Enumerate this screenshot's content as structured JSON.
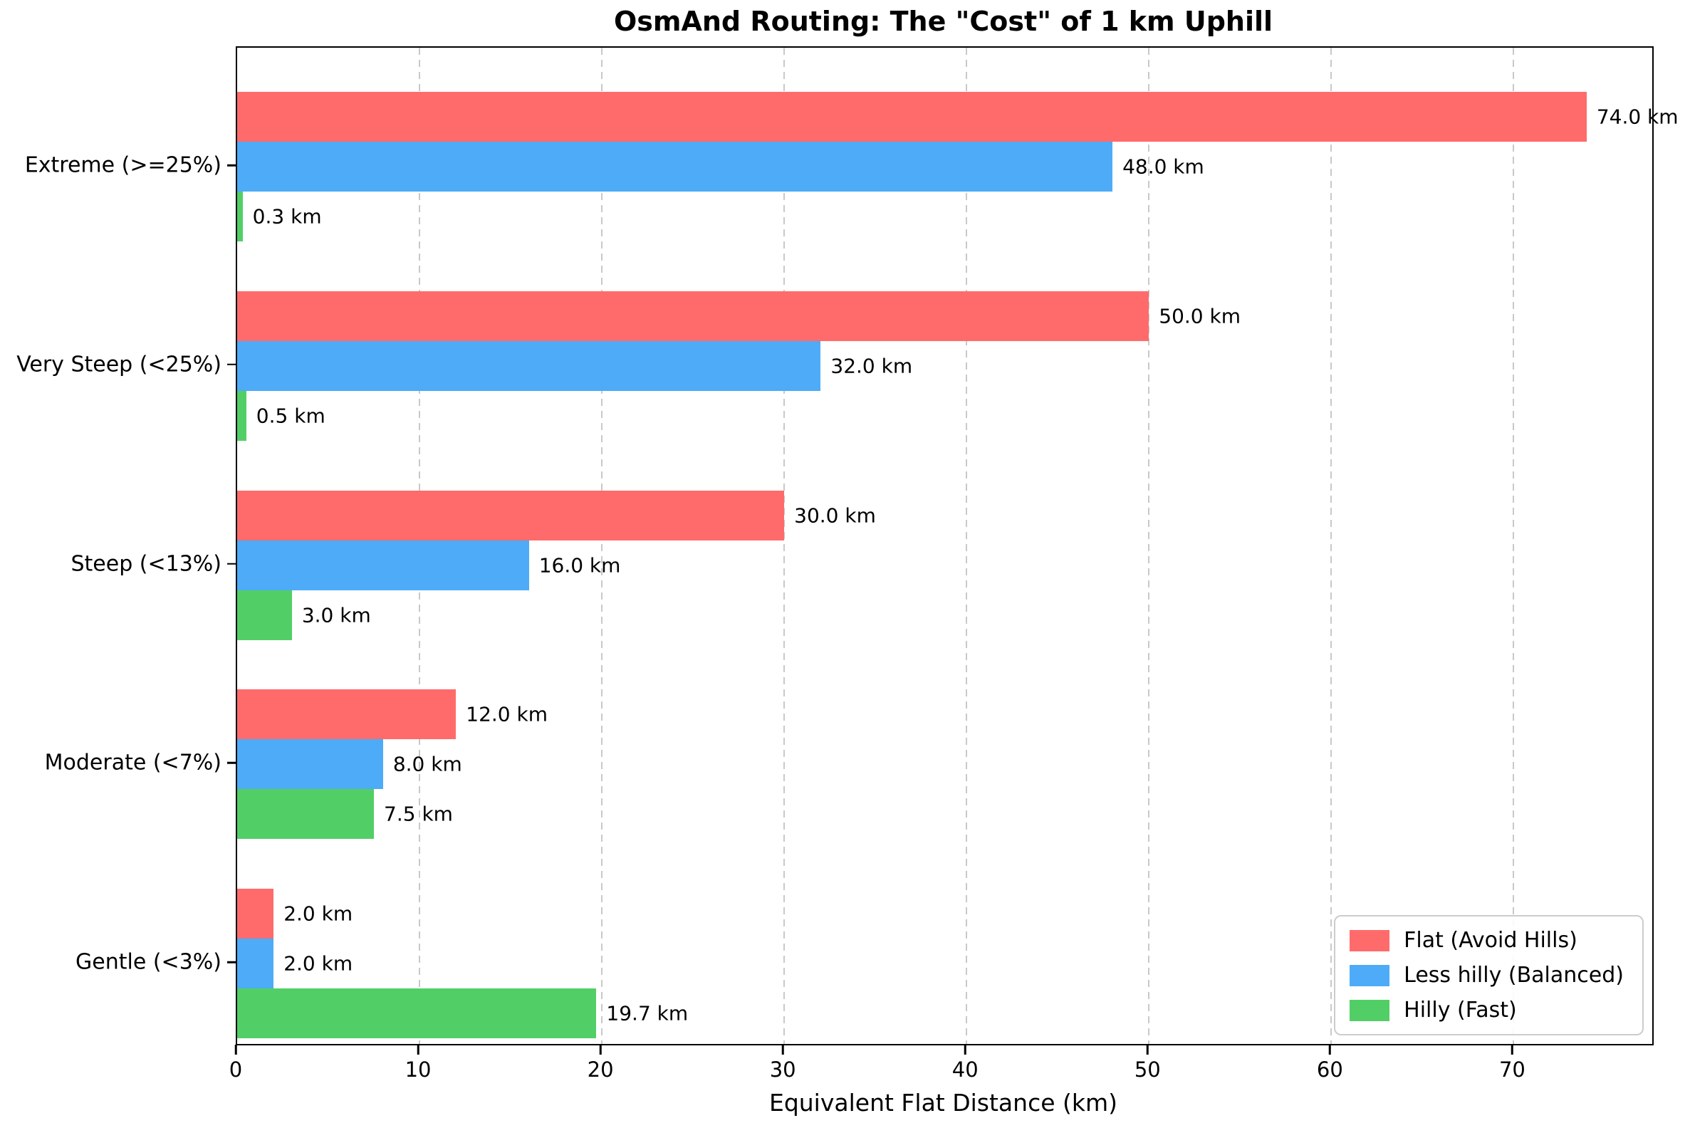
{
  "chart_data": {
    "type": "bar",
    "orientation": "horizontal",
    "title": "OsmAnd Routing: The \"Cost\" of 1 km Uphill",
    "xlabel": "Equivalent Flat Distance (km)",
    "ylabel": "",
    "categories": [
      "Extreme (>=25%)",
      "Very Steep (<25%)",
      "Steep (<13%)",
      "Moderate (<7%)",
      "Gentle (<3%)"
    ],
    "series": [
      {
        "name": "Flat (Avoid Hills)",
        "color": "#FF6B6B",
        "values": [
          74.0,
          50.0,
          30.0,
          12.0,
          2.0
        ],
        "labels": [
          "74.0 km",
          "50.0 km",
          "30.0 km",
          "12.0 km",
          "2.0 km"
        ]
      },
      {
        "name": "Less hilly (Balanced)",
        "color": "#4DABF7",
        "values": [
          48.0,
          32.0,
          16.0,
          8.0,
          2.0
        ],
        "labels": [
          "48.0 km",
          "32.0 km",
          "16.0 km",
          "8.0 km",
          "2.0 km"
        ]
      },
      {
        "name": "Hilly (Fast)",
        "color": "#51CF66",
        "values": [
          0.3,
          0.5,
          3.0,
          7.5,
          19.7
        ],
        "labels": [
          "0.3 km",
          "0.5 km",
          "3.0 km",
          "7.5 km",
          "19.7 km"
        ]
      }
    ],
    "xlim": [
      0,
      77.6
    ],
    "xticks": [
      0,
      10,
      20,
      30,
      40,
      50,
      60,
      70
    ],
    "xtick_labels": [
      "0",
      "10",
      "20",
      "30",
      "40",
      "50",
      "60",
      "70"
    ],
    "grid": "vertical-dashed",
    "grid_color": "#c9c9c9",
    "legend_position": "lower-right",
    "legend_border_color": "#cccccc",
    "axis_color": "#000000",
    "background_color": "#ffffff"
  }
}
